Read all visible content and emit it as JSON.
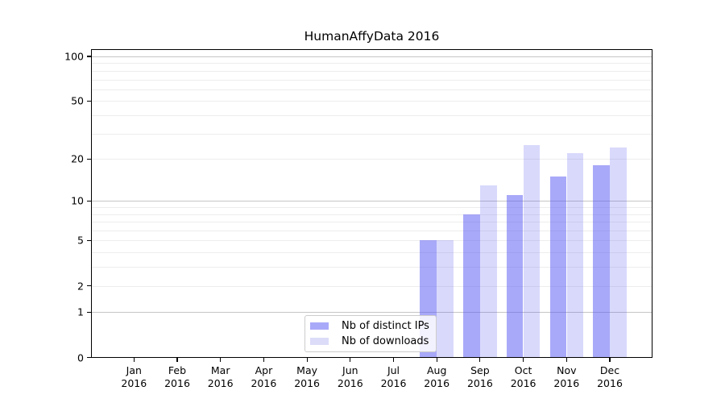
{
  "title": "HumanAffyData 2016",
  "chart_data": {
    "type": "bar",
    "title": "HumanAffyData 2016",
    "categories": [
      "Jan",
      "Feb",
      "Mar",
      "Apr",
      "May",
      "Jun",
      "Jul",
      "Aug",
      "Sep",
      "Oct",
      "Nov",
      "Dec"
    ],
    "x_year_label": "2016",
    "series": [
      {
        "name": "Nb of distinct IPs",
        "fill": "rgba(83,83,243,0.5)",
        "legend_color": "#a9a9f9",
        "values": [
          0,
          0,
          0,
          0,
          0,
          0,
          0,
          5,
          8,
          11,
          15,
          18
        ]
      },
      {
        "name": "Nb of downloads",
        "fill": "rgba(83,83,243,0.22)",
        "legend_color": "#dcdcf9",
        "values": [
          0,
          0,
          0,
          0,
          0,
          0,
          0,
          5,
          13,
          25,
          22,
          24
        ]
      }
    ],
    "y_scale": "log1p",
    "y_tick_labels": [
      100,
      50,
      20,
      10,
      5,
      2,
      1,
      0
    ],
    "y_major_gridlines": [
      1,
      10,
      100
    ],
    "y_minor_gridlines": [
      2,
      3,
      4,
      5,
      6,
      7,
      8,
      9,
      20,
      30,
      40,
      50,
      60,
      70,
      80,
      90
    ],
    "ylim": [
      0,
      112
    ],
    "grid": true,
    "legend_position": "lower center",
    "xlabel": "",
    "ylabel": ""
  }
}
